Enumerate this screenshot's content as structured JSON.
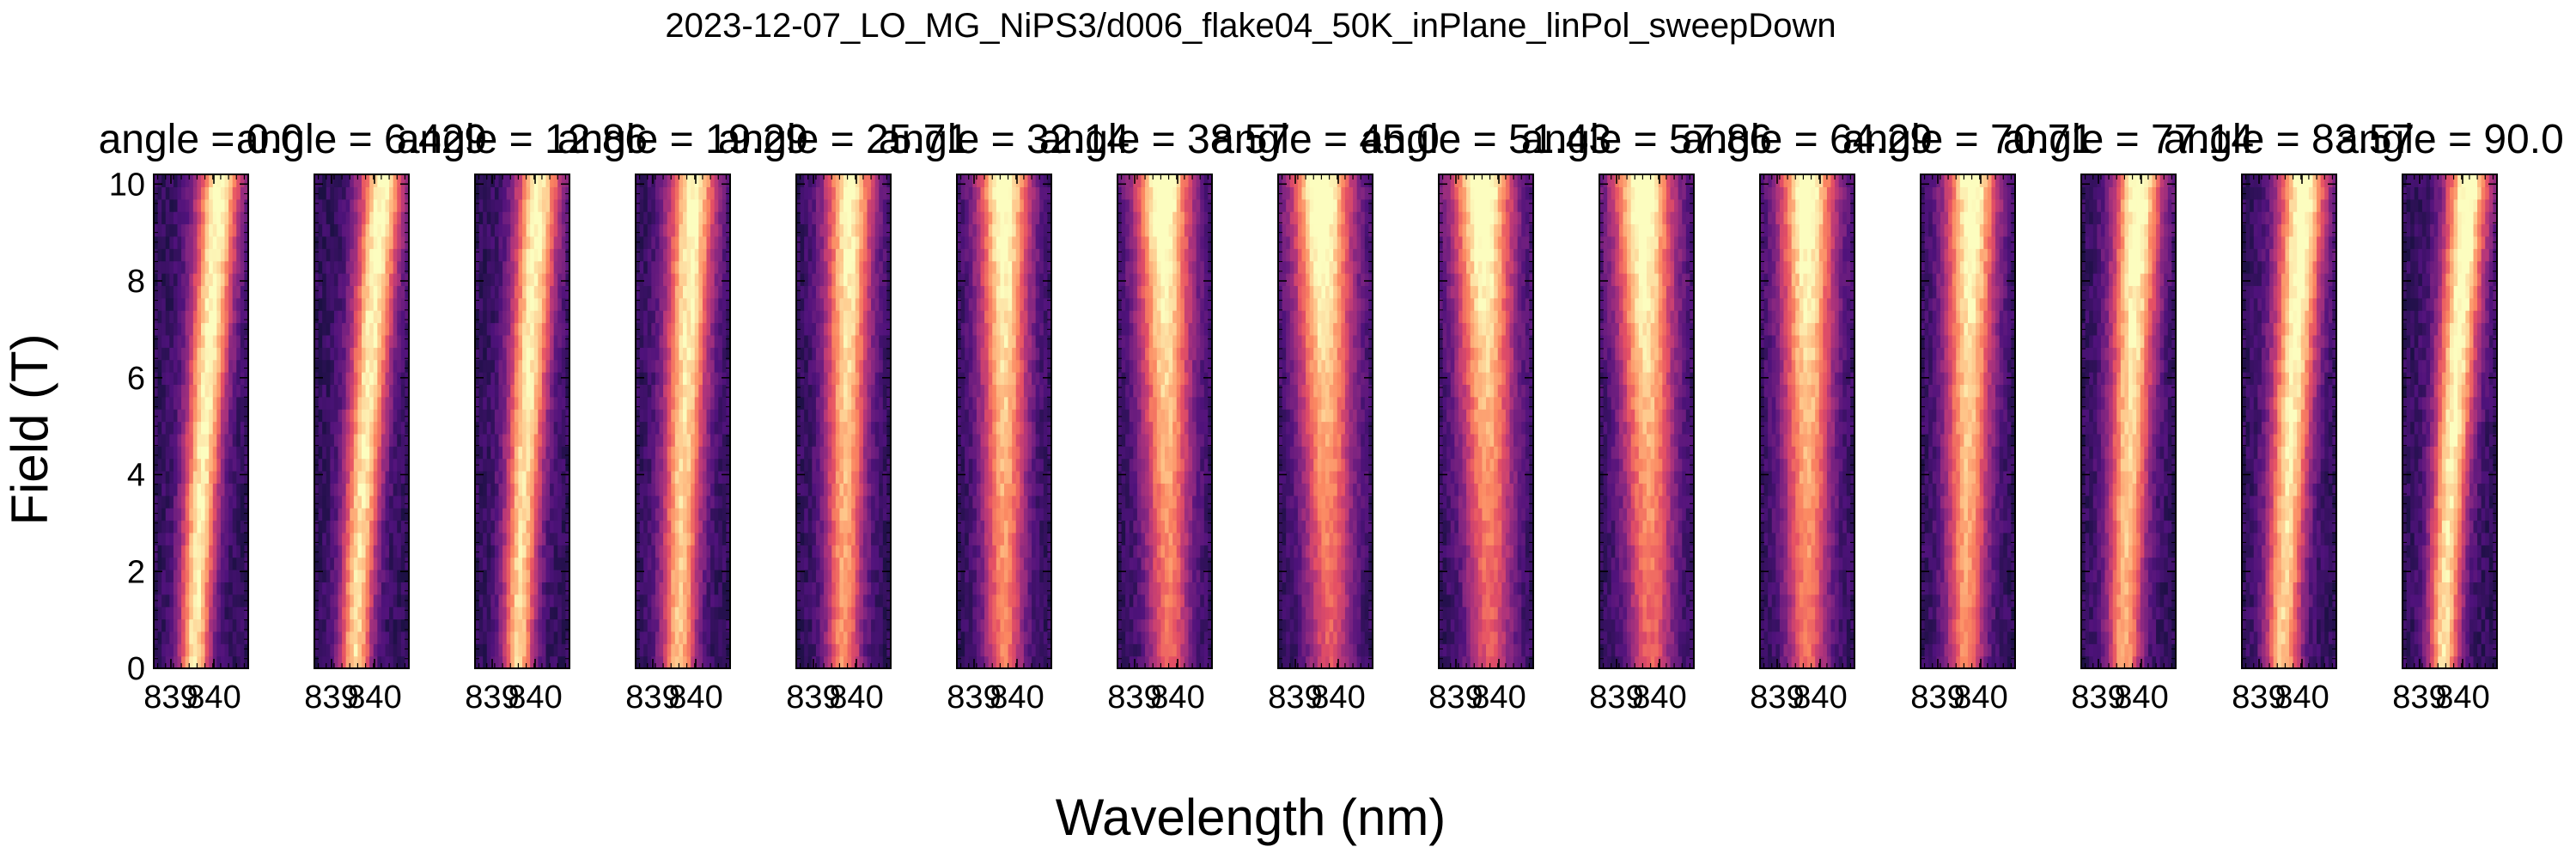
{
  "figure": {
    "suptitle": "2023-12-07_LO_MG_NiPS3/d006_flake04_50K_inPlane_linPol_sweepDown",
    "xlabel": "Wavelength (nm)",
    "ylabel": "Field (T)",
    "colormap": [
      "#000004",
      "#1c1044",
      "#4f127b",
      "#812581",
      "#b5367a",
      "#e55064",
      "#fb8761",
      "#fec287",
      "#fcfdbf"
    ]
  },
  "chart_data": {
    "type": "heatmap",
    "panel_count": 15,
    "panel_titles": [
      "angle = 0.0",
      "angle = 6.429",
      "angle = 12.86",
      "angle = 19.29",
      "angle = 25.71",
      "angle = 32.14",
      "angle = 38.57",
      "angle = 45.0",
      "angle = 51.43",
      "angle = 57.86",
      "angle = 64.29",
      "angle = 70.71",
      "angle = 77.14",
      "angle = 83.57",
      "angle = 90.0"
    ],
    "angles": [
      0.0,
      6.429,
      12.86,
      19.29,
      25.71,
      32.14,
      38.57,
      45.0,
      51.43,
      57.86,
      64.29,
      70.71,
      77.14,
      83.57,
      90.0
    ],
    "xlim": [
      838.6,
      840.8
    ],
    "ylim": [
      0,
      10.2
    ],
    "xticks": [
      839,
      840
    ],
    "xtick_labels": [
      "839",
      "840"
    ],
    "yticks": [
      0,
      2,
      4,
      6,
      8,
      10
    ],
    "ytick_labels": [
      "0",
      "2",
      "4",
      "6",
      "8",
      "10"
    ],
    "grid": false,
    "peak_center_low_field": [
      839.55,
      839.55,
      839.6,
      839.6,
      839.7,
      839.7,
      839.8,
      839.8,
      839.8,
      839.8,
      839.7,
      839.65,
      839.6,
      839.55,
      839.55
    ],
    "peak_center_high_field": [
      840.15,
      840.2,
      840.1,
      839.95,
      839.85,
      839.7,
      839.65,
      839.6,
      839.6,
      839.6,
      839.7,
      839.8,
      839.95,
      840.05,
      840.15
    ],
    "peak_intensity_low_field": [
      0.78,
      0.76,
      0.74,
      0.7,
      0.6,
      0.55,
      0.5,
      0.45,
      0.45,
      0.48,
      0.52,
      0.58,
      0.65,
      0.72,
      0.76
    ],
    "peak_intensity_high_field": [
      0.85,
      0.85,
      0.84,
      0.85,
      0.86,
      0.9,
      0.95,
      0.96,
      0.96,
      0.95,
      0.92,
      0.9,
      0.9,
      0.9,
      0.9
    ],
    "peak_width_nm": [
      0.55,
      0.55,
      0.55,
      0.6,
      0.6,
      0.65,
      0.7,
      0.75,
      0.75,
      0.75,
      0.7,
      0.65,
      0.6,
      0.6,
      0.55
    ]
  }
}
